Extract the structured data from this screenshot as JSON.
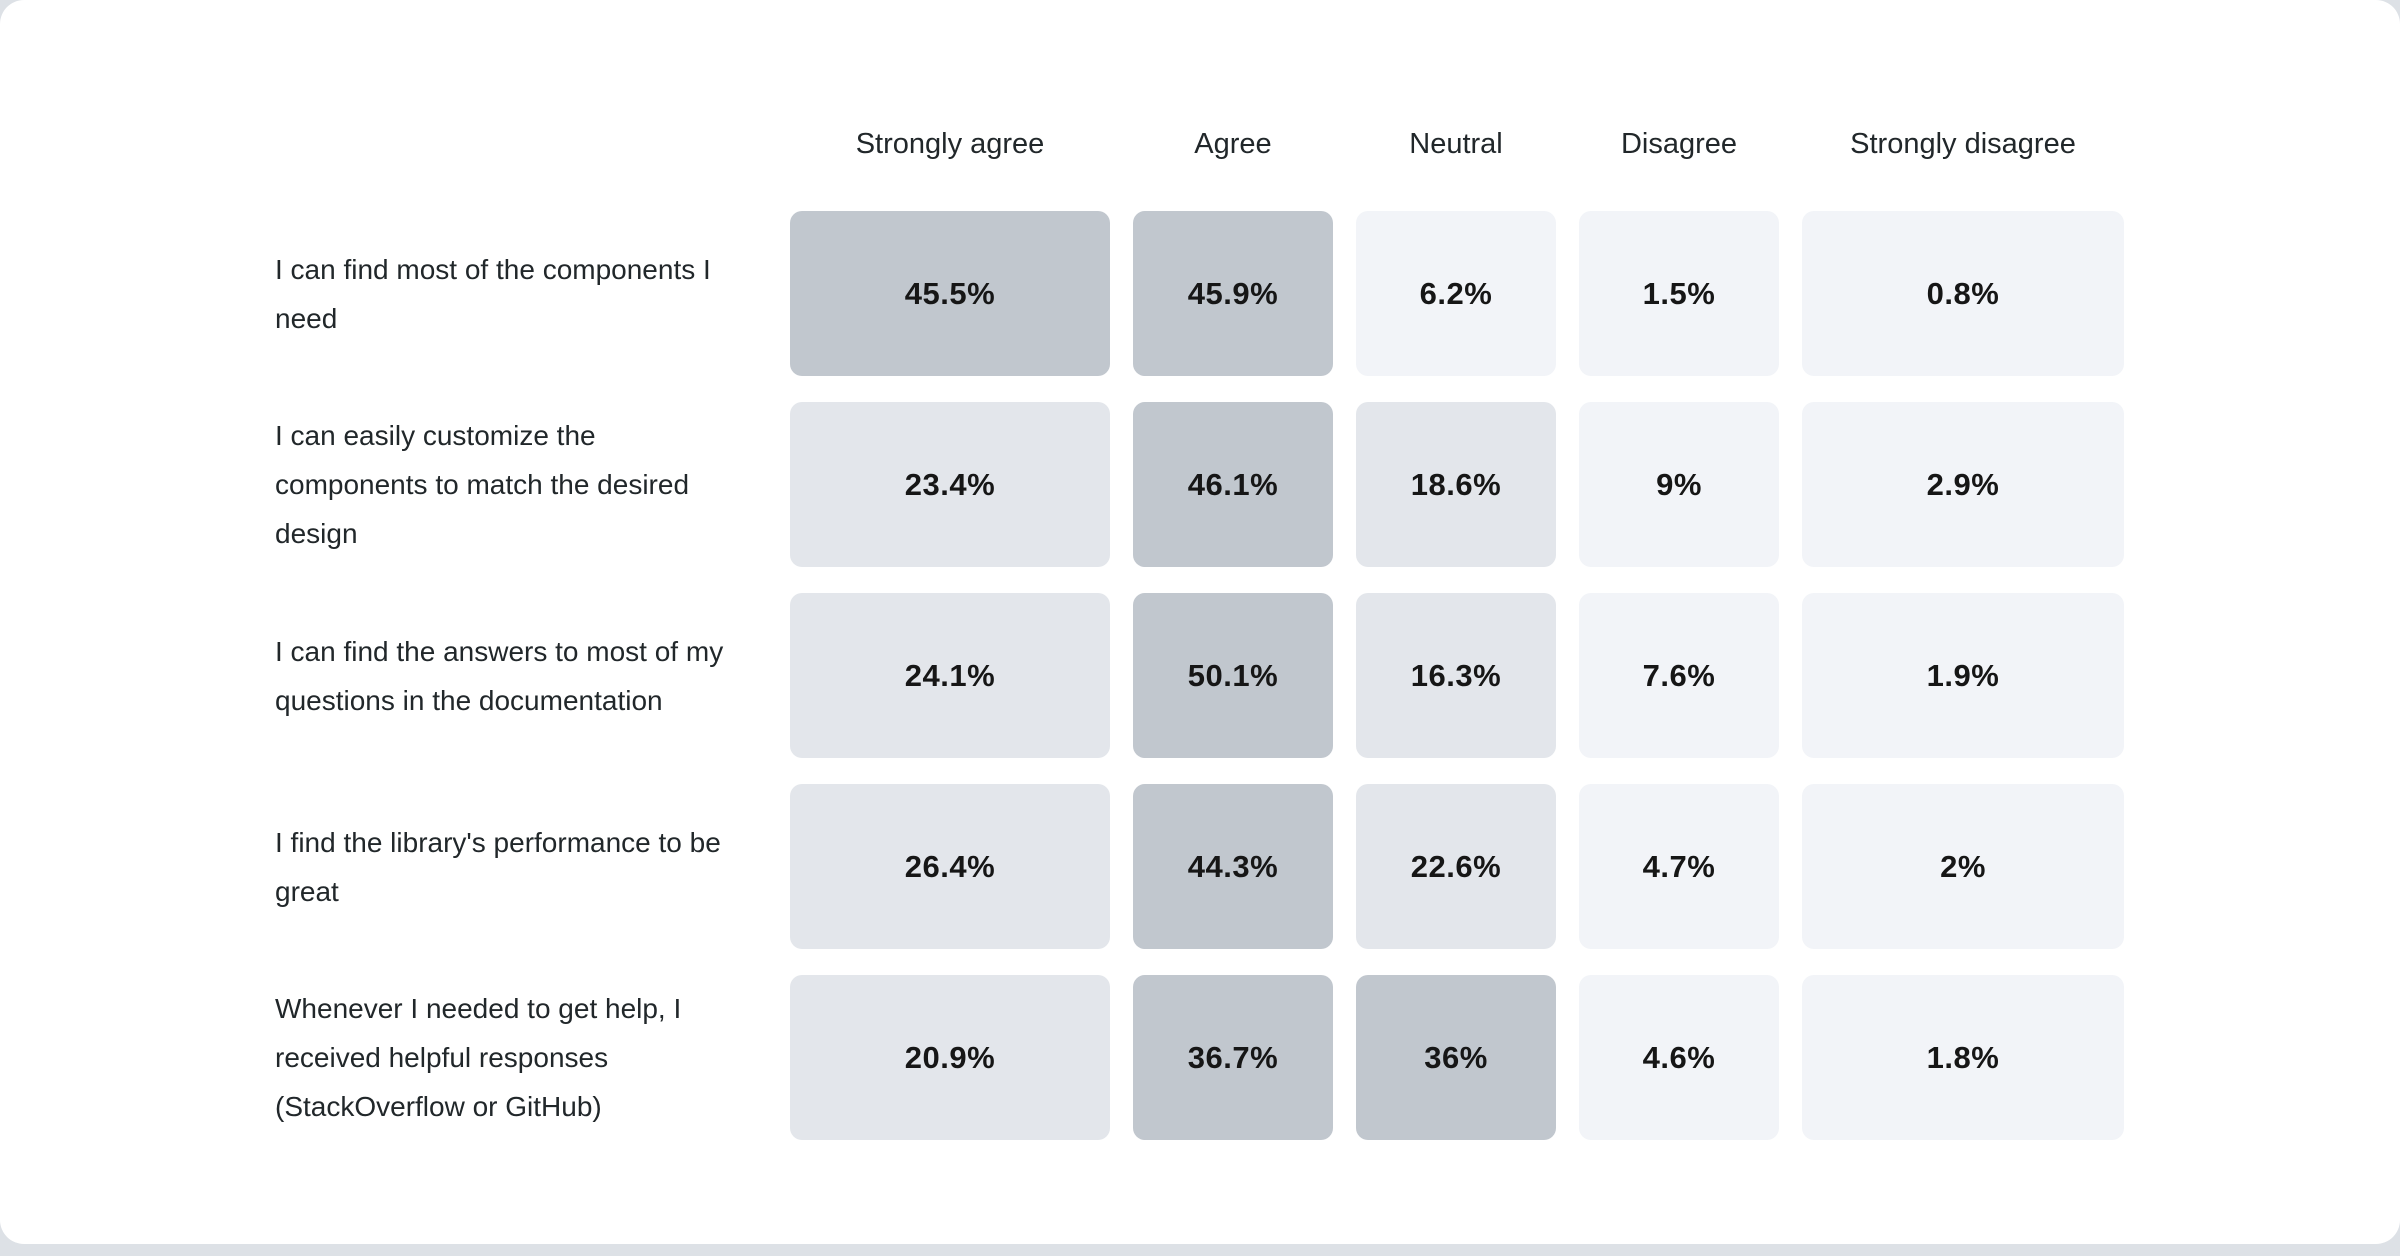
{
  "page": {
    "background_color": "#dde1e6",
    "card_background_color": "#ffffff"
  },
  "chart_data": {
    "type": "heatmap",
    "title": "",
    "categories": [
      "Strongly agree",
      "Agree",
      "Neutral",
      "Disagree",
      "Strongly disagree"
    ],
    "rows": [
      {
        "label": "I can find most of the components I need",
        "values": [
          45.5,
          45.9,
          6.2,
          1.5,
          0.8
        ]
      },
      {
        "label": "I can easily customize the components to match the desired design",
        "values": [
          23.4,
          46.1,
          18.6,
          9,
          2.9
        ]
      },
      {
        "label": "I can find the answers to most of my questions in the documentation",
        "values": [
          24.1,
          50.1,
          16.3,
          7.6,
          1.9
        ]
      },
      {
        "label": "I find the library's performance to be great",
        "values": [
          26.4,
          44.3,
          22.6,
          4.7,
          2
        ]
      },
      {
        "label": "Whenever I needed to get help, I received helpful responses (StackOverflow or GitHub)",
        "values": [
          20.9,
          36.7,
          36,
          4.6,
          1.8
        ]
      }
    ],
    "value_suffix": "%",
    "palette": {
      "levels": [
        {
          "min": 30,
          "color": "#c1c7ce"
        },
        {
          "min": 10,
          "color": "#e3e6eb"
        },
        {
          "min": 0,
          "color": "#f2f4f8"
        }
      ],
      "value_text_color": "#161616",
      "label_text_color": "#21272a"
    },
    "legend": false,
    "grid": false
  }
}
